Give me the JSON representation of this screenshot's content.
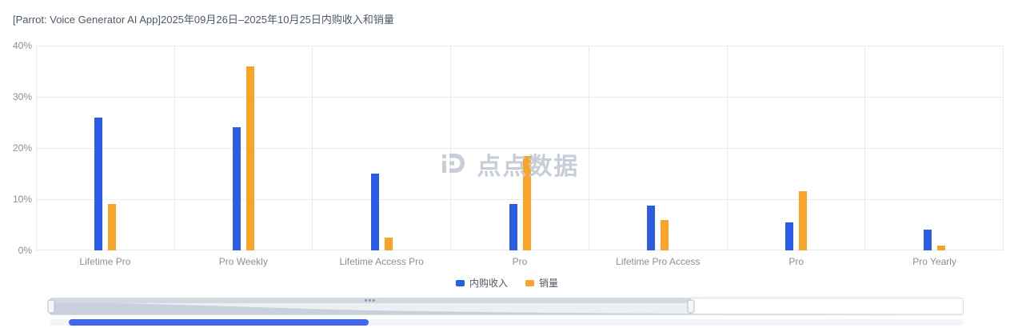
{
  "title": "[Parrot: Voice Generator AI App]2025年09月26日–2025年10月25日内购收入和销量",
  "watermark_text": "点点数据",
  "colors": {
    "revenue": "#2b5ce6",
    "sales": "#f7a428",
    "grid": "#e7eaef",
    "axis_label": "#86909c",
    "title": "#4e5969",
    "scrollbar_thumb": "#3e66f0"
  },
  "legend": {
    "items": [
      {
        "label": "内购收入",
        "color": "#2b5ce6"
      },
      {
        "label": "销量",
        "color": "#f7a428"
      }
    ]
  },
  "chart_data": {
    "type": "bar",
    "title": "[Parrot: Voice Generator AI App]2025年09月26日–2025年10月25日内购收入和销量",
    "categories": [
      "Lifetime Pro",
      "Pro Weekly",
      "Lifetime Access Pro",
      "Pro",
      "Lifetime Pro Access",
      "Pro",
      "Pro Yearly"
    ],
    "series": [
      {
        "name": "内购收入",
        "color": "#2b5ce6",
        "values": [
          26,
          24,
          15,
          9,
          8.8,
          5.5,
          4
        ]
      },
      {
        "name": "销量",
        "color": "#f7a428",
        "values": [
          9,
          36,
          2.5,
          18.5,
          6,
          11.5,
          1
        ]
      }
    ],
    "xlabel": "",
    "ylabel": "",
    "ylim": [
      0,
      40
    ],
    "ytick_step": 10,
    "ytick_suffix": "%",
    "grid": true,
    "legend_position": "bottom"
  }
}
